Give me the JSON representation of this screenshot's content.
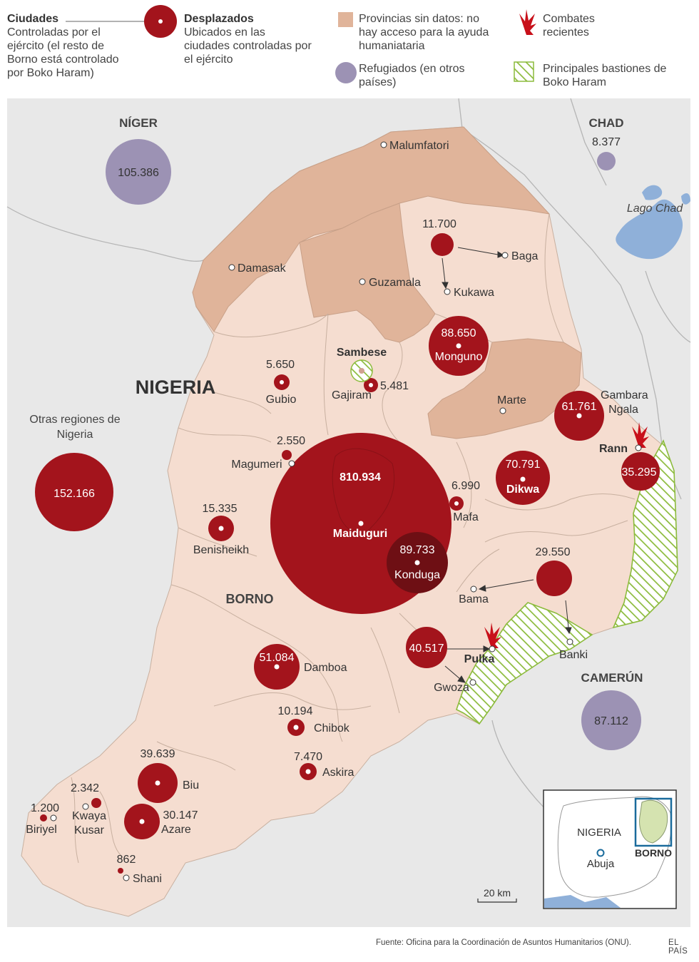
{
  "legend": {
    "ciudades": {
      "title": "Ciudades",
      "text": "Controladas por el ejército (el resto de Borno está controlado por Boko Haram)"
    },
    "desplazados": {
      "title": "Desplazados",
      "text": "Ubicados en las ciudades controladas por el ejército"
    },
    "sin_datos": {
      "text": "Provincias sin datos: no hay acceso para la ayuda humaniataria"
    },
    "refugiados": {
      "text": "Refugiados (en otros países)"
    },
    "combates": {
      "text": "Combates recientes"
    },
    "bastiones": {
      "text": "Principales bastiones de Boko Haram"
    }
  },
  "colors": {
    "displaced": "#a3141c",
    "displaced_dark": "#6e0f14",
    "refugee": "#9c92b4",
    "no_data": "#e0b49a",
    "borno": "#f5ddd0",
    "outside": "#e8e8e8",
    "water": "#8fb0d9",
    "stronghold": "#8cbb3c"
  },
  "regions": {
    "niger": "NÍGER",
    "chad": "CHAD",
    "nigeria": "NIGERIA",
    "borno": "BORNO",
    "camerun": "CAMERÚN",
    "lago_chad": "Lago Chad",
    "otras": "Otras regiones de Nigeria"
  },
  "refugees": [
    {
      "country": "Níger",
      "value": "105.386"
    },
    {
      "country": "Chad",
      "value": "8.377"
    },
    {
      "country": "Camerún",
      "value": "87.112"
    }
  ],
  "other_regions_value": "152.166",
  "cities": [
    "Malumfatori",
    "Baga",
    "Kukawa",
    "Damasak",
    "Guzamala",
    "Monguno",
    "Sambese",
    "Gajiram",
    "Gubio",
    "Marte",
    "Gambara Ngala",
    "Rann",
    "Dikwa",
    "Magumeri",
    "Maiduguri",
    "Mafa",
    "Konduga",
    "Benisheikh",
    "Bama",
    "Banki",
    "Pulka",
    "Gwoza",
    "Damboa",
    "Chibok",
    "Askira",
    "Biu",
    "Azare",
    "Kwaya Kusar",
    "Biriyel",
    "Shani"
  ],
  "displaced": [
    {
      "city": "Maiduguri",
      "value": "810.934"
    },
    {
      "city": "Konduga",
      "value": "89.733"
    },
    {
      "city": "Monguno",
      "value": "88.650"
    },
    {
      "city": "Dikwa",
      "value": "70.791"
    },
    {
      "city": "Gambara Ngala",
      "value": "61.761"
    },
    {
      "city": "Damboa",
      "value": "51.084"
    },
    {
      "city": "Gwoza / Pulka",
      "value": "40.517"
    },
    {
      "city": "Biu",
      "value": "39.639"
    },
    {
      "city": "Rann",
      "value": "35.295"
    },
    {
      "city": "Azare",
      "value": "30.147"
    },
    {
      "city": "Bama",
      "value": "29.550"
    },
    {
      "city": "Benisheikh",
      "value": "15.335"
    },
    {
      "city": "Baga / Kukawa",
      "value": "11.700"
    },
    {
      "city": "Chibok",
      "value": "10.194"
    },
    {
      "city": "Askira",
      "value": "7.470"
    },
    {
      "city": "Mafa",
      "value": "6.990"
    },
    {
      "city": "Gubio",
      "value": "5.650"
    },
    {
      "city": "Gajiram",
      "value": "5.481"
    },
    {
      "city": "Magumeri",
      "value": "2.550"
    },
    {
      "city": "Kwaya Kusar",
      "value": "2.342"
    },
    {
      "city": "Biriyel",
      "value": "1.200"
    },
    {
      "city": "Shani",
      "value": "862"
    }
  ],
  "inset": {
    "country": "NIGERIA",
    "capital": "Abuja",
    "state": "BORNO"
  },
  "scale": "20 km",
  "source": "Fuente: Oficina para la Coordinación de Asuntos Humanitarios (ONU).",
  "brand": "EL PAÍS"
}
